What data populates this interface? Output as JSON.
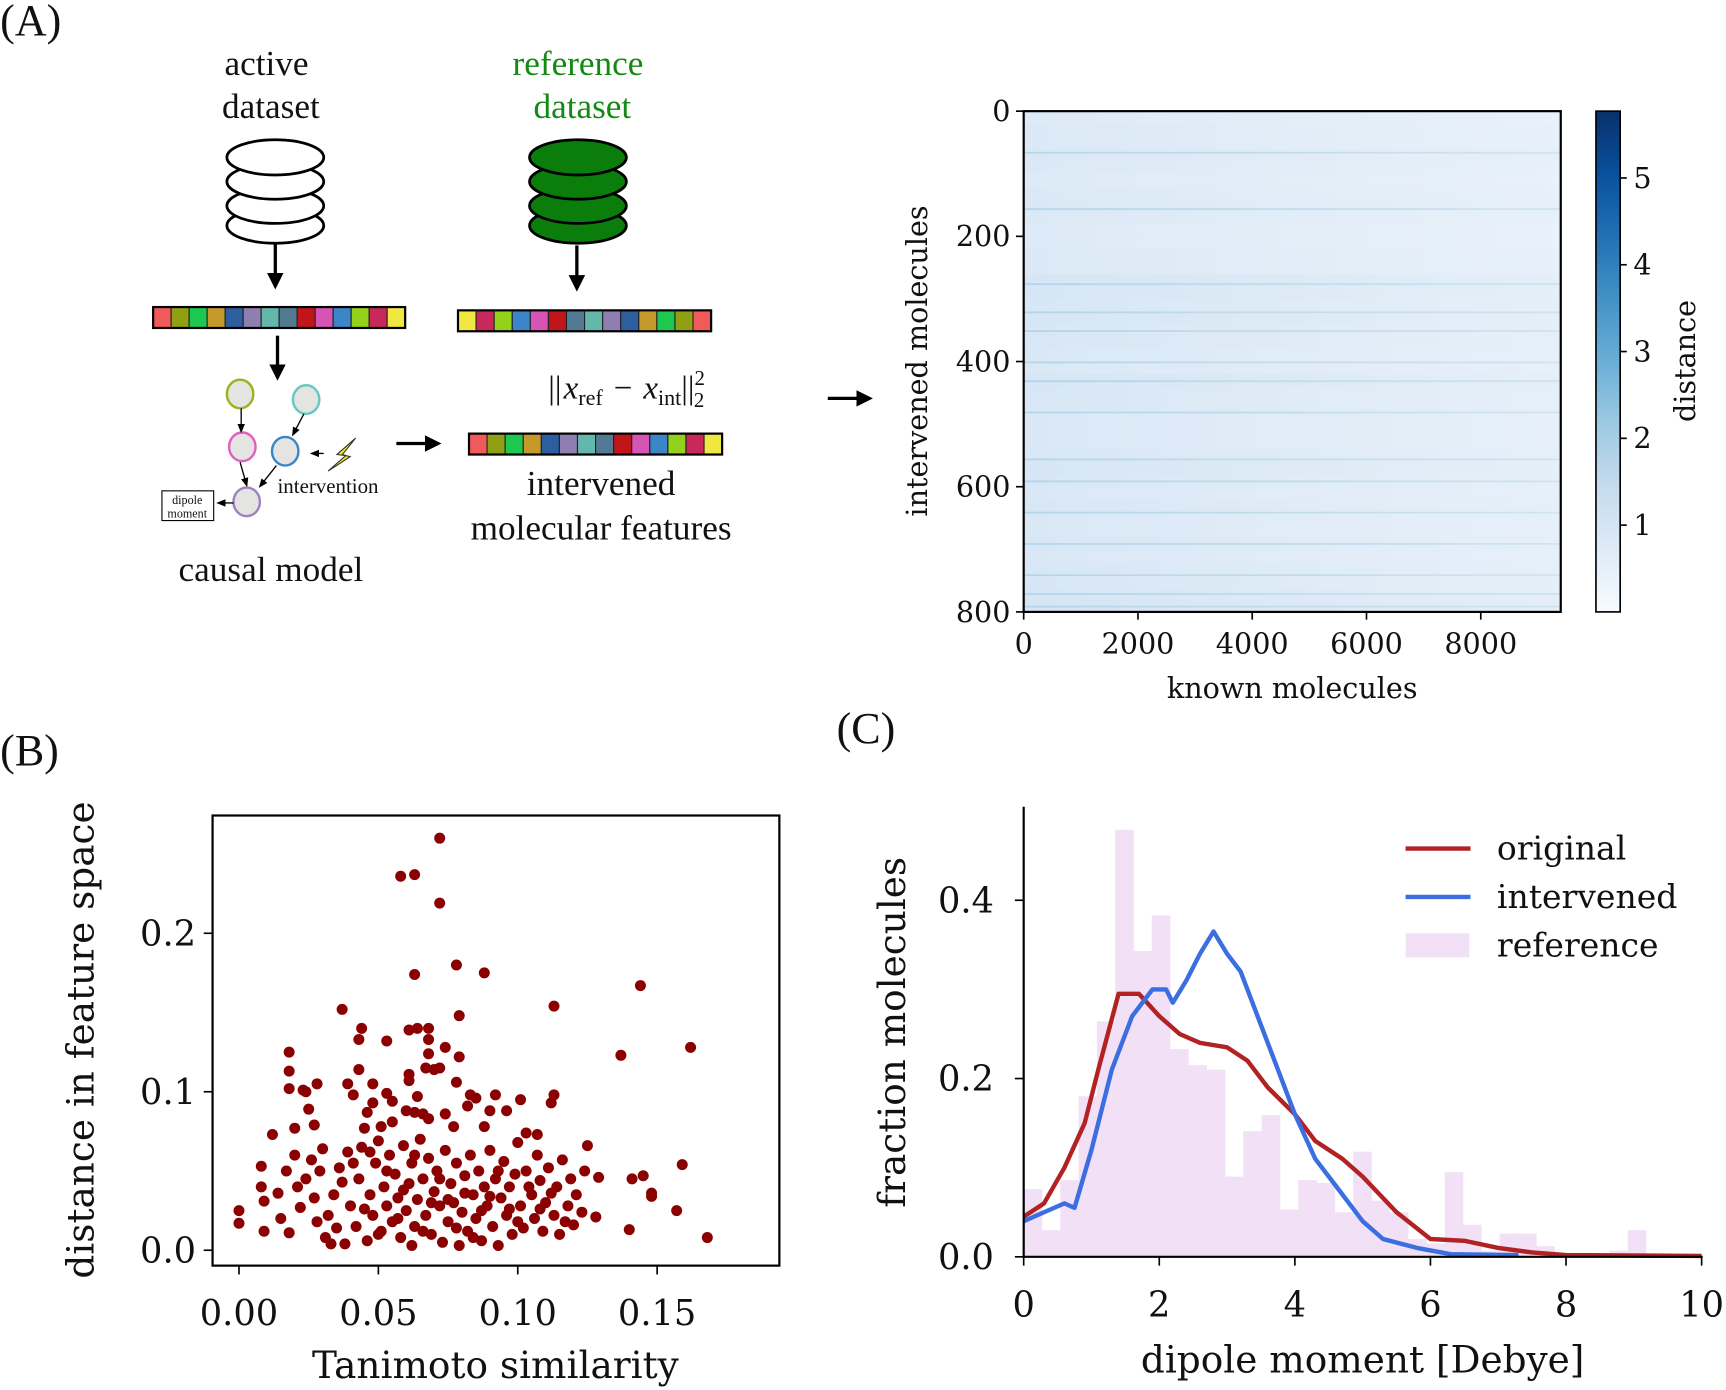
{
  "panel_labels": {
    "a": "(A)",
    "b": "(B)",
    "c": "(C)"
  },
  "diagram": {
    "active_dataset": [
      "active",
      "dataset"
    ],
    "reference_dataset": [
      "reference",
      "dataset"
    ],
    "reference_color": "#138a13",
    "formula": "||x_ref − x_int||₂²",
    "formula_parts": {
      "norm": "||",
      "x": "x",
      "ref": "ref",
      "minus": "−",
      "int": "int",
      "sup": "2",
      "sub": "2"
    },
    "intervention_label": "intervention",
    "dipole_box": [
      "dipole",
      "moment"
    ],
    "causal_model_label": "causal model",
    "intervened_features": [
      "intervened",
      "molecular features"
    ],
    "feature_colors_active": [
      "#f05a5a",
      "#8fa012",
      "#1ec850",
      "#c59a2a",
      "#2c5ea0",
      "#8f7fb0",
      "#63b7ab",
      "#537a93",
      "#c0161a",
      "#d655b4",
      "#3a86c8",
      "#93d11b",
      "#c8285a",
      "#f0e840"
    ],
    "feature_colors_reference": [
      "#f0e840",
      "#c8285a",
      "#93d11b",
      "#3a86c8",
      "#d655b4",
      "#c0161a",
      "#537a93",
      "#63b7ab",
      "#8f7fb0",
      "#2c5ea0",
      "#c59a2a",
      "#1ec850",
      "#8fa012",
      "#f05a5a"
    ],
    "feature_colors_intervened": [
      "#f05a5a",
      "#8fa012",
      "#1ec850",
      "#c59a2a",
      "#2c5ea0",
      "#8f7fb0",
      "#63b7ab",
      "#537a93",
      "#c0161a",
      "#d655b4",
      "#3a86c8",
      "#93d11b",
      "#c8285a",
      "#f0e840"
    ],
    "node_colors": [
      "#a0b020",
      "#66c8c0",
      "#e060c0",
      "#3a86c8",
      "#a080c0"
    ]
  },
  "chart_data": [
    {
      "type": "heatmap",
      "xlabel": "known molecules",
      "ylabel": "intervened molecules",
      "xlim": [
        0,
        9400
      ],
      "ylim": [
        0,
        800
      ],
      "y_inverted": true,
      "xticks": [
        "0",
        "2000",
        "4000",
        "6000",
        "8000"
      ],
      "xtick_values": [
        0,
        2000,
        4000,
        6000,
        8000
      ],
      "yticks": [
        "0",
        "200",
        "400",
        "600",
        "800"
      ],
      "ytick_values": [
        0,
        200,
        400,
        600,
        800
      ],
      "colormap": "Blues",
      "colorbar": {
        "label": "distance",
        "range": [
          0,
          5.77
        ],
        "ticks": [
          "1",
          "2",
          "3",
          "4",
          "5"
        ],
        "tick_values": [
          1,
          2,
          3,
          4,
          5
        ]
      },
      "row_block_mean_distance": [
        0.75,
        0.8,
        0.8,
        0.85,
        0.8,
        0.75,
        0.8,
        0.85,
        0.8,
        0.75,
        0.75,
        0.8,
        0.8,
        0.95,
        0.95,
        0.9,
        0.95,
        0.9,
        0.9,
        0.85,
        0.85,
        0.95,
        0.9,
        0.9,
        0.85,
        0.85,
        0.85,
        0.9,
        0.95,
        0.9,
        0.85,
        0.9,
        0.85,
        0.85,
        0.9,
        0.85,
        0.9,
        0.9,
        0.95,
        1.0
      ],
      "high_distance_rows": [
        65,
        155,
        275,
        320,
        350,
        400,
        430,
        480,
        555,
        590,
        640,
        690,
        740,
        770,
        790
      ]
    },
    {
      "type": "scatter",
      "xlabel": "Tanimoto similarity",
      "ylabel": "distance in feature space",
      "xlim": [
        -0.008,
        0.176
      ],
      "ylim": [
        -0.01,
        0.275
      ],
      "xticks": [
        "0.00",
        "0.05",
        "0.10",
        "0.15"
      ],
      "xtick_values": [
        0,
        0.05,
        0.1,
        0.15
      ],
      "yticks": [
        "0.0",
        "0.1",
        "0.2"
      ],
      "ytick_values": [
        0,
        0.1,
        0.2
      ],
      "color": "#8b0000",
      "points": [
        [
          0.072,
          0.26
        ],
        [
          0.058,
          0.236
        ],
        [
          0.063,
          0.237
        ],
        [
          0.072,
          0.219
        ],
        [
          0.078,
          0.18
        ],
        [
          0.088,
          0.175
        ],
        [
          0.063,
          0.174
        ],
        [
          0.144,
          0.167
        ],
        [
          0.113,
          0.154
        ],
        [
          0.037,
          0.152
        ],
        [
          0.079,
          0.148
        ],
        [
          0.044,
          0.14
        ],
        [
          0.043,
          0.133
        ],
        [
          0.061,
          0.139
        ],
        [
          0.064,
          0.14
        ],
        [
          0.068,
          0.14
        ],
        [
          0.053,
          0.132
        ],
        [
          0.068,
          0.133
        ],
        [
          0.162,
          0.128
        ],
        [
          0.137,
          0.123
        ],
        [
          0.018,
          0.125
        ],
        [
          0.074,
          0.128
        ],
        [
          0.079,
          0.122
        ],
        [
          0.068,
          0.124
        ],
        [
          0.018,
          0.113
        ],
        [
          0.043,
          0.114
        ],
        [
          0.067,
          0.115
        ],
        [
          0.072,
          0.115
        ],
        [
          0.07,
          0.114
        ],
        [
          0.061,
          0.111
        ],
        [
          0.061,
          0.107
        ],
        [
          0.018,
          0.102
        ],
        [
          0.023,
          0.101
        ],
        [
          0.024,
          0.1
        ],
        [
          0.028,
          0.105
        ],
        [
          0.039,
          0.105
        ],
        [
          0.048,
          0.105
        ],
        [
          0.078,
          0.106
        ],
        [
          0.041,
          0.098
        ],
        [
          0.053,
          0.099
        ],
        [
          0.055,
          0.094
        ],
        [
          0.064,
          0.097
        ],
        [
          0.083,
          0.098
        ],
        [
          0.085,
          0.096
        ],
        [
          0.092,
          0.098
        ],
        [
          0.101,
          0.095
        ],
        [
          0.113,
          0.098
        ],
        [
          0.112,
          0.093
        ],
        [
          0.025,
          0.089
        ],
        [
          0.046,
          0.087
        ],
        [
          0.048,
          0.093
        ],
        [
          0.082,
          0.091
        ],
        [
          0.09,
          0.088
        ],
        [
          0.096,
          0.088
        ],
        [
          0.06,
          0.088
        ],
        [
          0.063,
          0.087
        ],
        [
          0.066,
          0.086
        ],
        [
          0.074,
          0.086
        ],
        [
          0.012,
          0.073
        ],
        [
          0.02,
          0.077
        ],
        [
          0.027,
          0.079
        ],
        [
          0.045,
          0.077
        ],
        [
          0.051,
          0.078
        ],
        [
          0.055,
          0.081
        ],
        [
          0.068,
          0.083
        ],
        [
          0.077,
          0.078
        ],
        [
          0.088,
          0.078
        ],
        [
          0.103,
          0.074
        ],
        [
          0.107,
          0.073
        ],
        [
          0.125,
          0.066
        ],
        [
          0.141,
          0.045
        ],
        [
          0.145,
          0.047
        ],
        [
          0.148,
          0.036
        ],
        [
          0.148,
          0.034
        ],
        [
          0.157,
          0.025
        ],
        [
          0.159,
          0.054
        ],
        [
          0.168,
          0.008
        ],
        [
          0.14,
          0.013
        ],
        [
          0.128,
          0.021
        ],
        [
          0.129,
          0.046
        ],
        [
          0.0,
          0.025
        ],
        [
          0.0,
          0.017
        ],
        [
          0.008,
          0.053
        ],
        [
          0.008,
          0.04
        ],
        [
          0.009,
          0.012
        ],
        [
          0.009,
          0.031
        ],
        [
          0.014,
          0.036
        ],
        [
          0.017,
          0.05
        ],
        [
          0.018,
          0.011
        ],
        [
          0.02,
          0.06
        ],
        [
          0.022,
          0.027
        ],
        [
          0.024,
          0.045
        ],
        [
          0.026,
          0.057
        ],
        [
          0.028,
          0.018
        ],
        [
          0.03,
          0.064
        ],
        [
          0.031,
          0.008
        ],
        [
          0.033,
          0.004
        ],
        [
          0.034,
          0.035
        ],
        [
          0.036,
          0.052
        ],
        [
          0.038,
          0.004
        ],
        [
          0.039,
          0.062
        ],
        [
          0.04,
          0.028
        ],
        [
          0.042,
          0.015
        ],
        [
          0.043,
          0.045
        ],
        [
          0.044,
          0.065
        ],
        [
          0.046,
          0.006
        ],
        [
          0.047,
          0.035
        ],
        [
          0.048,
          0.022
        ],
        [
          0.049,
          0.055
        ],
        [
          0.05,
          0.069
        ],
        [
          0.051,
          0.012
        ],
        [
          0.052,
          0.04
        ],
        [
          0.053,
          0.028
        ],
        [
          0.054,
          0.06
        ],
        [
          0.055,
          0.018
        ],
        [
          0.056,
          0.048
        ],
        [
          0.057,
          0.033
        ],
        [
          0.058,
          0.008
        ],
        [
          0.059,
          0.066
        ],
        [
          0.06,
          0.025
        ],
        [
          0.061,
          0.042
        ],
        [
          0.062,
          0.003
        ],
        [
          0.062,
          0.055
        ],
        [
          0.063,
          0.015
        ],
        [
          0.064,
          0.032
        ],
        [
          0.065,
          0.07
        ],
        [
          0.066,
          0.045
        ],
        [
          0.067,
          0.022
        ],
        [
          0.068,
          0.058
        ],
        [
          0.069,
          0.01
        ],
        [
          0.07,
          0.037
        ],
        [
          0.071,
          0.05
        ],
        [
          0.072,
          0.028
        ],
        [
          0.073,
          0.005
        ],
        [
          0.074,
          0.063
        ],
        [
          0.075,
          0.018
        ],
        [
          0.076,
          0.042
        ],
        [
          0.077,
          0.03
        ],
        [
          0.078,
          0.055
        ],
        [
          0.079,
          0.003
        ],
        [
          0.08,
          0.024
        ],
        [
          0.081,
          0.047
        ],
        [
          0.082,
          0.012
        ],
        [
          0.083,
          0.06
        ],
        [
          0.084,
          0.035
        ],
        [
          0.085,
          0.02
        ],
        [
          0.086,
          0.05
        ],
        [
          0.087,
          0.006
        ],
        [
          0.088,
          0.04
        ],
        [
          0.089,
          0.028
        ],
        [
          0.09,
          0.063
        ],
        [
          0.091,
          0.015
        ],
        [
          0.092,
          0.045
        ],
        [
          0.093,
          0.003
        ],
        [
          0.094,
          0.033
        ],
        [
          0.095,
          0.056
        ],
        [
          0.096,
          0.022
        ],
        [
          0.097,
          0.04
        ],
        [
          0.098,
          0.01
        ],
        [
          0.099,
          0.048
        ],
        [
          0.1,
          0.068
        ],
        [
          0.101,
          0.028
        ],
        [
          0.102,
          0.014
        ],
        [
          0.103,
          0.05
        ],
        [
          0.105,
          0.035
        ],
        [
          0.106,
          0.02
        ],
        [
          0.107,
          0.06
        ],
        [
          0.108,
          0.044
        ],
        [
          0.109,
          0.012
        ],
        [
          0.11,
          0.03
        ],
        [
          0.111,
          0.052
        ],
        [
          0.113,
          0.022
        ],
        [
          0.114,
          0.04
        ],
        [
          0.115,
          0.01
        ],
        [
          0.116,
          0.057
        ],
        [
          0.118,
          0.028
        ],
        [
          0.119,
          0.045
        ],
        [
          0.12,
          0.016
        ],
        [
          0.121,
          0.035
        ],
        [
          0.123,
          0.024
        ],
        [
          0.124,
          0.05
        ],
        [
          0.015,
          0.02
        ],
        [
          0.021,
          0.04
        ],
        [
          0.027,
          0.033
        ],
        [
          0.029,
          0.05
        ],
        [
          0.032,
          0.022
        ],
        [
          0.035,
          0.014
        ],
        [
          0.037,
          0.043
        ],
        [
          0.041,
          0.055
        ],
        [
          0.045,
          0.026
        ],
        [
          0.047,
          0.062
        ],
        [
          0.05,
          0.01
        ],
        [
          0.053,
          0.05
        ],
        [
          0.057,
          0.02
        ],
        [
          0.059,
          0.038
        ],
        [
          0.063,
          0.06
        ],
        [
          0.066,
          0.012
        ],
        [
          0.069,
          0.03
        ],
        [
          0.072,
          0.045
        ],
        [
          0.075,
          0.032
        ],
        [
          0.078,
          0.014
        ],
        [
          0.081,
          0.036
        ],
        [
          0.084,
          0.008
        ],
        [
          0.087,
          0.025
        ],
        [
          0.09,
          0.034
        ],
        [
          0.093,
          0.05
        ],
        [
          0.097,
          0.026
        ],
        [
          0.1,
          0.018
        ],
        [
          0.104,
          0.04
        ],
        [
          0.108,
          0.026
        ],
        [
          0.112,
          0.036
        ],
        [
          0.117,
          0.018
        ]
      ]
    },
    {
      "type": "line",
      "xlabel": "dipole moment [Debye]",
      "ylabel": "fraction molecules",
      "xlim": [
        0,
        10
      ],
      "ylim": [
        0,
        0.5
      ],
      "xticks": [
        "0",
        "2",
        "4",
        "6",
        "8",
        "10"
      ],
      "xtick_values": [
        0,
        2,
        4,
        6,
        8,
        10
      ],
      "yticks": [
        "0.0",
        "0.2",
        "0.4"
      ],
      "ytick_values": [
        0,
        0.2,
        0.4
      ],
      "legend_position": "top-right",
      "series": [
        {
          "name": "original",
          "color": "#b22222",
          "x": [
            0,
            0.3,
            0.6,
            0.9,
            1.1,
            1.4,
            1.7,
            2.0,
            2.3,
            2.6,
            3.0,
            3.3,
            3.6,
            4.0,
            4.3,
            4.7,
            5.0,
            5.5,
            6.0,
            6.5,
            7.0,
            7.5,
            8.0,
            10.0
          ],
          "y": [
            0.045,
            0.06,
            0.1,
            0.15,
            0.21,
            0.295,
            0.295,
            0.27,
            0.25,
            0.24,
            0.235,
            0.22,
            0.19,
            0.16,
            0.13,
            0.11,
            0.09,
            0.05,
            0.02,
            0.018,
            0.01,
            0.005,
            0.002,
            0.001
          ]
        },
        {
          "name": "intervened",
          "color": "#3b6ee0",
          "x": [
            0,
            0.3,
            0.6,
            0.75,
            1.0,
            1.3,
            1.6,
            1.9,
            2.1,
            2.2,
            2.4,
            2.6,
            2.8,
            3.0,
            3.2,
            3.5,
            3.8,
            4.0,
            4.3,
            4.6,
            5.0,
            5.3,
            5.8,
            6.3,
            7.3
          ],
          "y": [
            0.04,
            0.05,
            0.06,
            0.055,
            0.12,
            0.21,
            0.27,
            0.3,
            0.3,
            0.285,
            0.31,
            0.34,
            0.365,
            0.34,
            0.32,
            0.26,
            0.2,
            0.16,
            0.11,
            0.08,
            0.04,
            0.02,
            0.01,
            0.003,
            0.002
          ]
        },
        {
          "name": "reference",
          "type": "histogram",
          "color": "#f2e0f7",
          "bin_width": 0.27,
          "values": [
            0.076,
            0.03,
            0.086,
            0.18,
            0.264,
            0.479,
            0.343,
            0.383,
            0.233,
            0.215,
            0.21,
            0.09,
            0.141,
            0.159,
            0.053,
            0.086,
            0.083,
            0.05,
            0.118,
            0.063,
            0.05,
            0.02,
            0.015,
            0.095,
            0.036,
            0.007,
            0.026,
            0.026,
            0.012,
            0.003,
            0.003,
            0.003,
            0.007,
            0.03,
            0,
            0,
            0
          ]
        }
      ]
    }
  ]
}
